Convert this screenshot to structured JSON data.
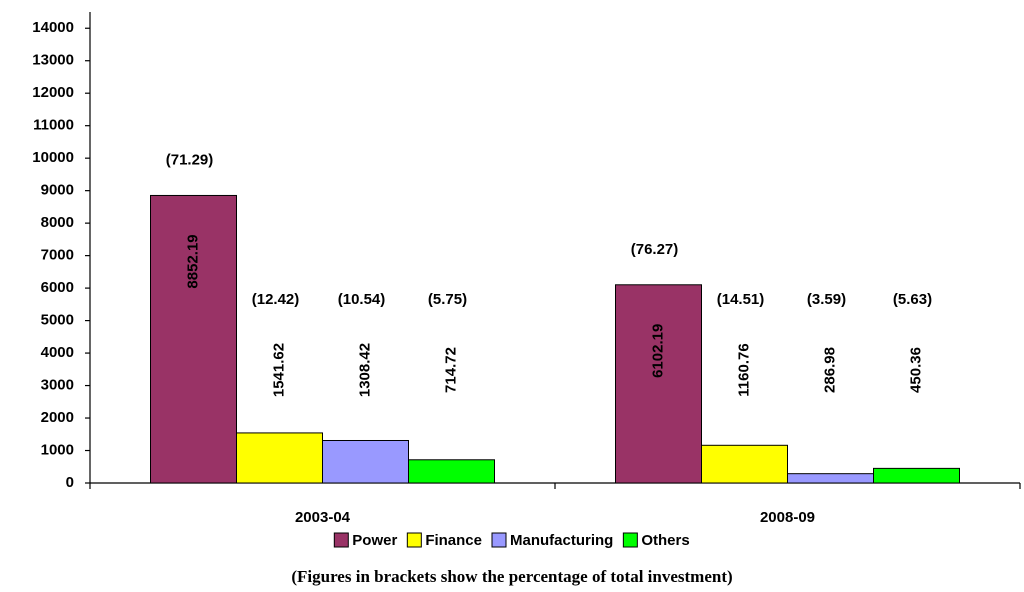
{
  "chart_data": {
    "type": "bar",
    "categories": [
      "2003-04",
      "2008-09"
    ],
    "series": [
      {
        "name": "Power",
        "color": "#993366",
        "values": [
          8852.19,
          6102.19
        ],
        "percent_labels": [
          "(71.29)",
          "(76.27)"
        ]
      },
      {
        "name": "Finance",
        "color": "#ffff00",
        "values": [
          1541.62,
          1160.76
        ],
        "percent_labels": [
          "(12.42)",
          "(14.51)"
        ]
      },
      {
        "name": "Manufacturing",
        "color": "#9999ff",
        "values": [
          1308.42,
          286.98
        ],
        "percent_labels": [
          "(10.54)",
          "(3.59)"
        ]
      },
      {
        "name": "Others",
        "color": "#00ff00",
        "values": [
          714.72,
          450.36
        ],
        "percent_labels": [
          "(5.75)",
          "(5.63)"
        ]
      }
    ],
    "ylim": [
      0,
      14500
    ],
    "yticks": [
      0,
      1000,
      2000,
      3000,
      4000,
      5000,
      6000,
      7000,
      8000,
      9000,
      10000,
      11000,
      12000,
      13000,
      14000
    ],
    "footnote": "(Figures in brackets show the percentage of total investment)"
  }
}
